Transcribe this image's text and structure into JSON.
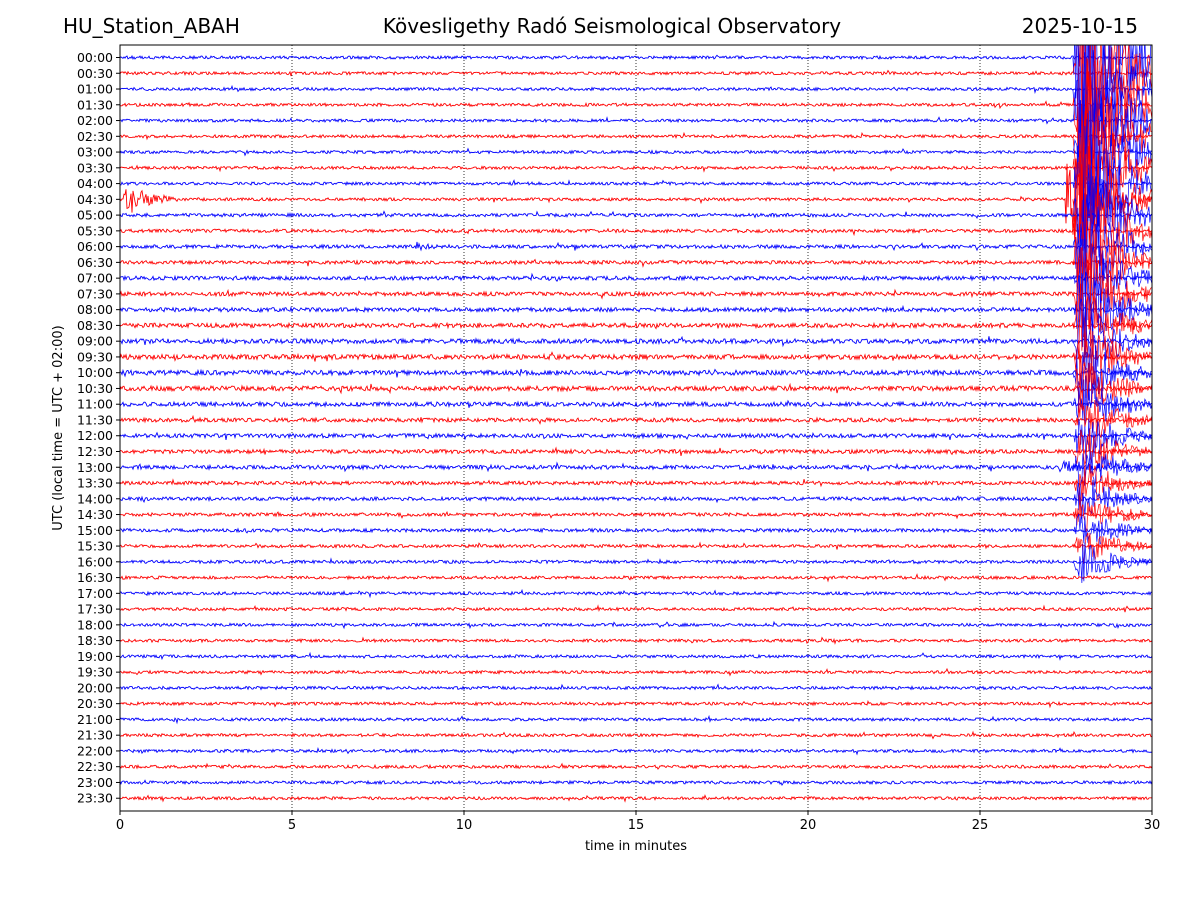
{
  "header": {
    "station": "HU_Station_ABAH",
    "title": "Kövesligethy Radó Seismological Observatory",
    "date": "2025-10-15"
  },
  "chart_data": {
    "type": "line",
    "title": "Kövesligethy Radó Seismological Observatory",
    "xlabel": "time in minutes",
    "ylabel": "UTC (local time = UTC + 02:00)",
    "xlim": [
      0,
      30
    ],
    "xticks": [
      "0",
      "5",
      "10",
      "15",
      "20",
      "25",
      "30"
    ],
    "grid": "vertical dotted lines at 5, 10, 15, 20, 25 minutes",
    "colors": {
      "full_hour": "#0000ff",
      "half_hour": "#ff0000"
    },
    "rows": [
      "00:00",
      "00:30",
      "01:00",
      "01:30",
      "02:00",
      "02:30",
      "03:00",
      "03:30",
      "04:00",
      "04:30",
      "05:00",
      "05:30",
      "06:00",
      "06:30",
      "07:00",
      "07:30",
      "08:00",
      "08:30",
      "09:00",
      "09:30",
      "10:00",
      "10:30",
      "11:00",
      "11:30",
      "12:00",
      "12:30",
      "13:00",
      "13:30",
      "14:00",
      "14:30",
      "15:00",
      "15:30",
      "16:00",
      "16:30",
      "17:00",
      "17:30",
      "18:00",
      "18:30",
      "19:00",
      "19:30",
      "20:00",
      "20:30",
      "21:00",
      "21:30",
      "22:00",
      "22:30",
      "23:00",
      "23:30"
    ],
    "noise_amplitude": [
      1.5,
      1.5,
      1.5,
      1.5,
      1.5,
      1.5,
      1.5,
      1.5,
      1.5,
      1.5,
      1.7,
      1.7,
      1.8,
      1.8,
      2.0,
      2.0,
      2.1,
      2.2,
      2.4,
      2.4,
      2.4,
      2.4,
      2.2,
      2.0,
      2.0,
      2.0,
      2.0,
      1.8,
      1.8,
      1.7,
      1.7,
      1.6,
      1.6,
      1.5,
      1.5,
      1.5,
      1.5,
      1.5,
      1.5,
      1.5,
      1.5,
      1.5,
      1.5,
      1.5,
      1.5,
      1.5,
      1.5,
      1.5
    ],
    "events": [
      {
        "row": "04:30",
        "start_min": 0.1,
        "duration_min": 3.4,
        "amplitude": 24,
        "decay_min": 0.55
      },
      {
        "row": "06:00",
        "start_min": 8.6,
        "duration_min": 1.4,
        "amplitude": 6,
        "decay_min": 0.4
      },
      {
        "row": "07:30",
        "start_min": 3.1,
        "duration_min": 0.5,
        "amplitude": 5,
        "decay_min": 0.15
      },
      {
        "row": "10:00",
        "start_min": 1.75,
        "duration_min": 0.15,
        "amplitude": 5,
        "decay_min": 0.05
      },
      {
        "row": "10:00",
        "start_min": 11.6,
        "duration_min": 0.15,
        "amplitude": 5,
        "decay_min": 0.05
      },
      {
        "row": "10:30",
        "start_min": 29.6,
        "duration_min": 0.2,
        "amplitude": 5,
        "decay_min": 0.06
      },
      {
        "row": "13:00",
        "start_min": 27.3,
        "duration_min": 2.7,
        "amplitude": 7,
        "decay_min": 1.4
      },
      {
        "row": "18:00",
        "start_min": 28.9,
        "duration_min": 0.8,
        "amplitude": 4,
        "decay_min": 0.4
      },
      {
        "row": "04:30",
        "start_min": 27.5,
        "duration_min": 2.5,
        "amplitude": 60,
        "decay_min": 0.9,
        "clipped": true
      },
      {
        "row": "00:00",
        "start_min": 27.7,
        "duration_min": 2.3,
        "amplitude": 340,
        "decay_min": 0.6,
        "clipped": true,
        "row_span": 33
      }
    ]
  }
}
